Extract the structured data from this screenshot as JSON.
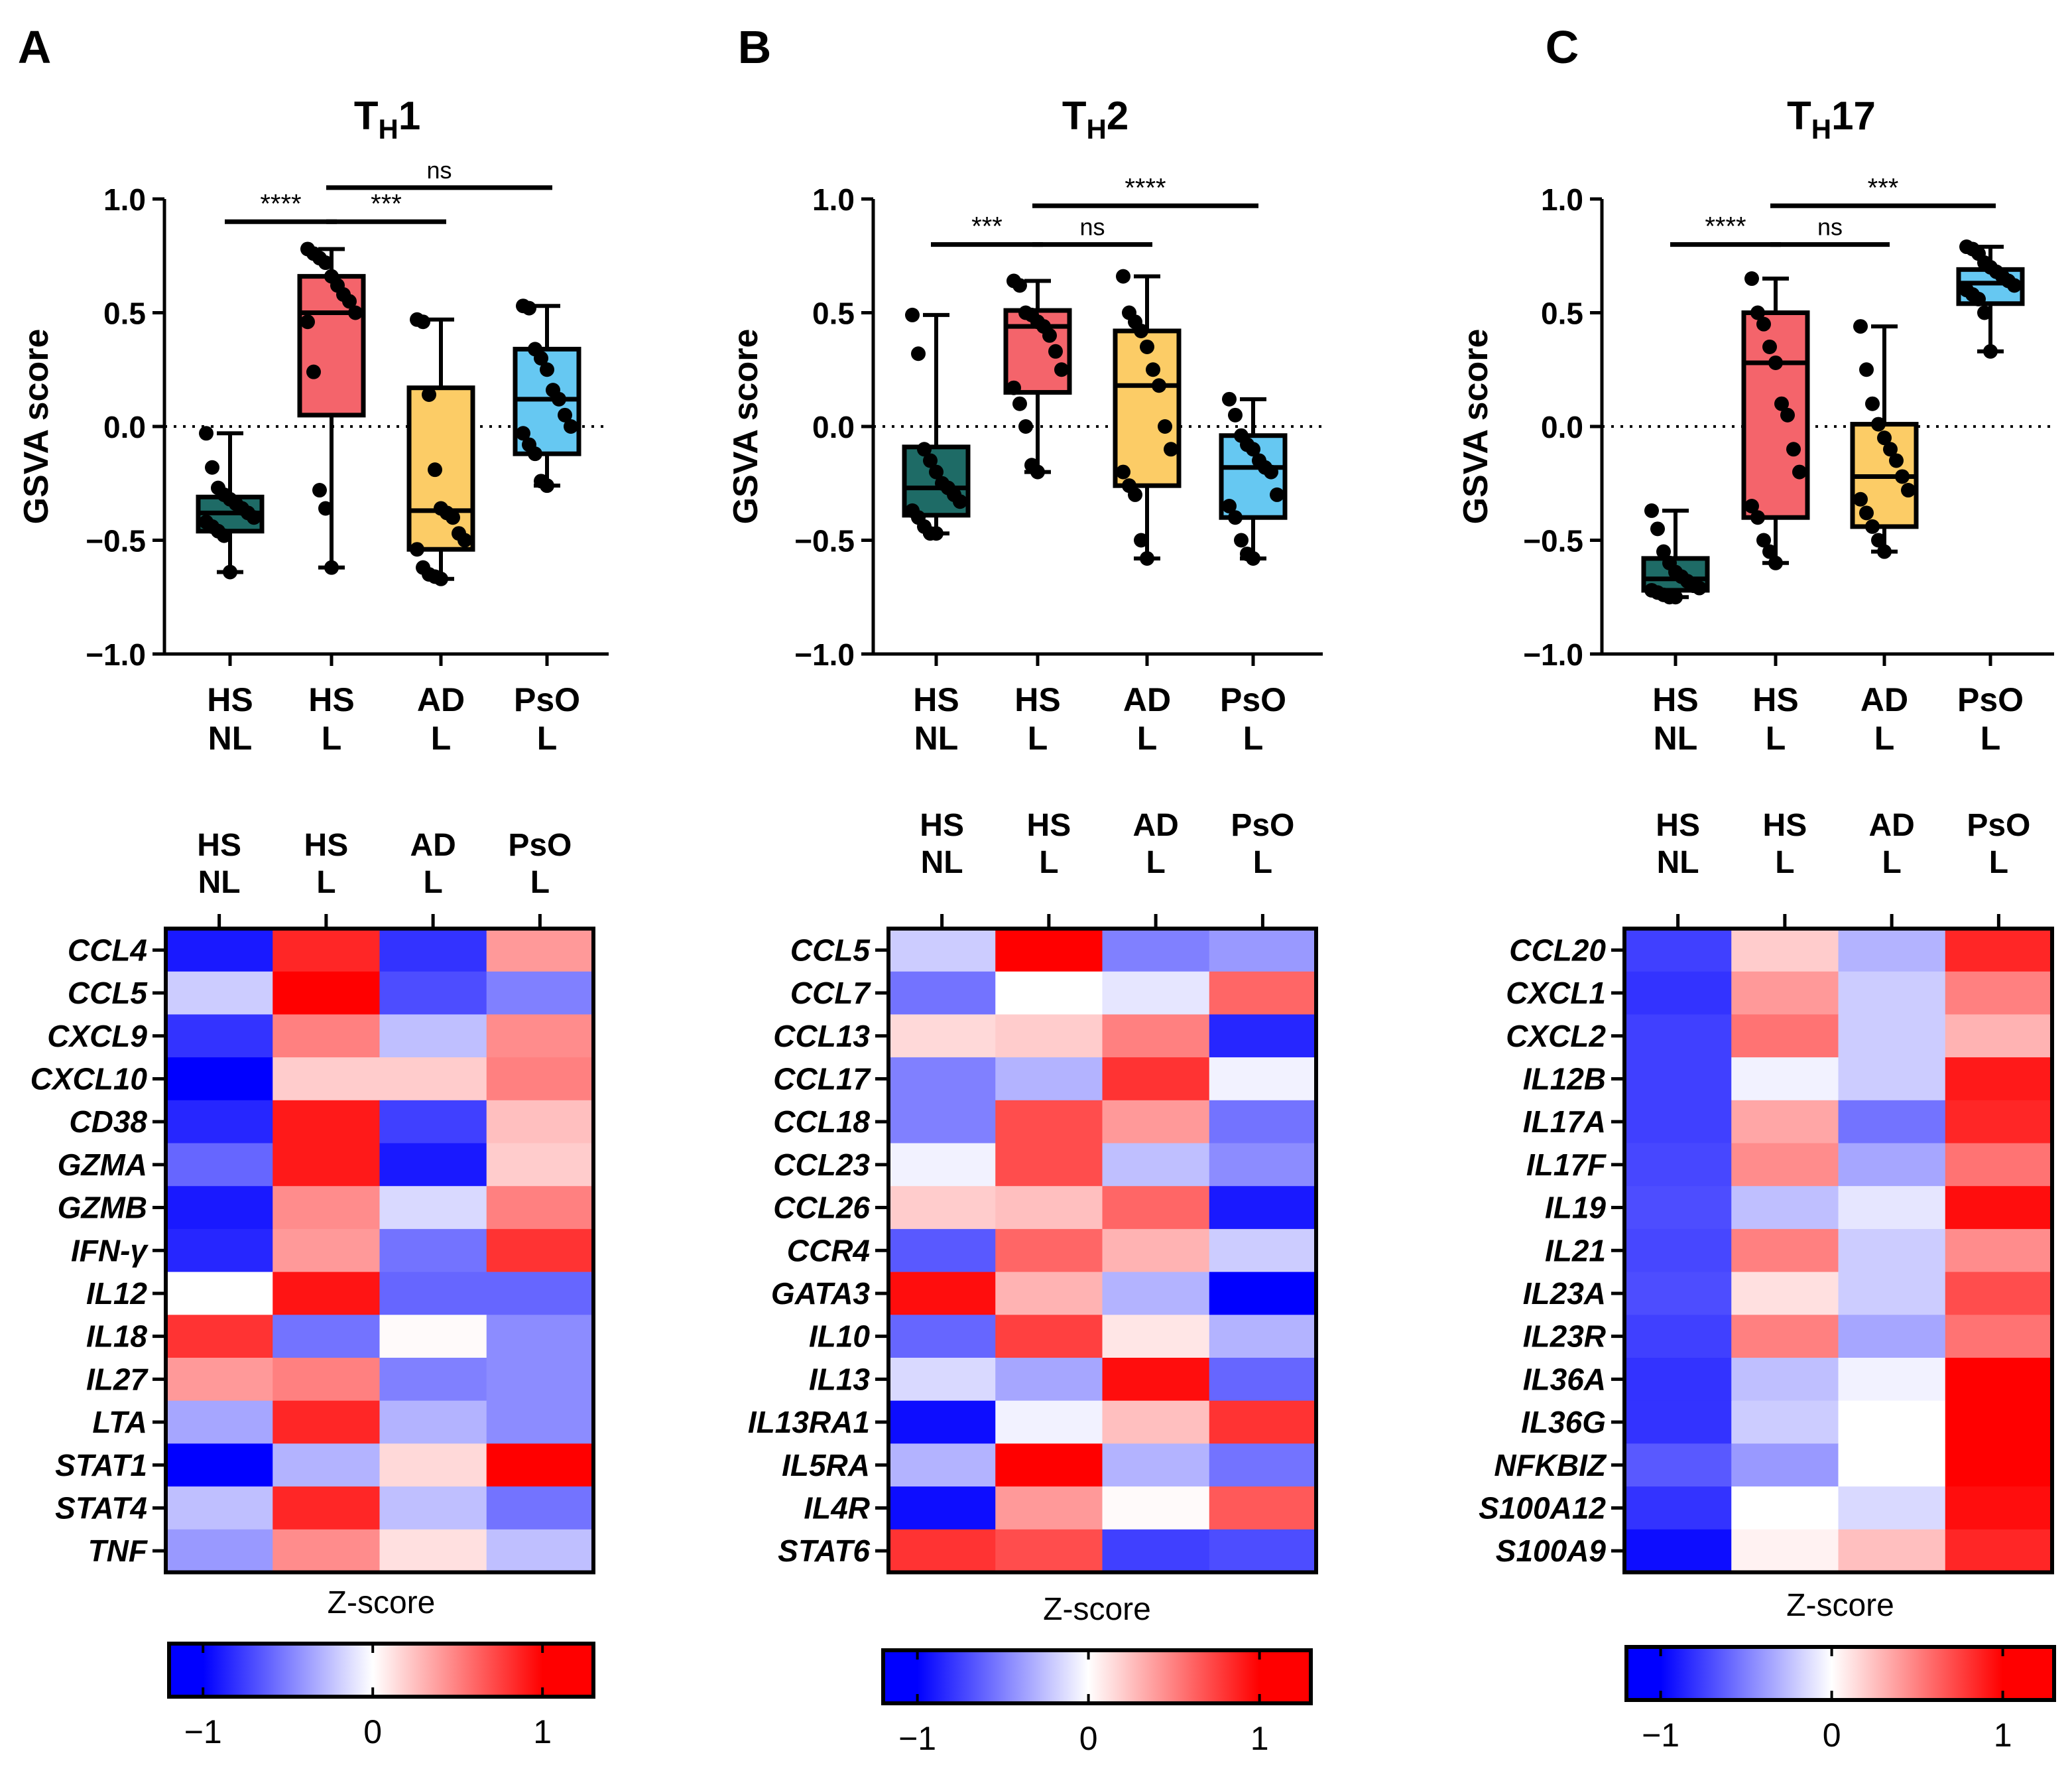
{
  "colors": {
    "HS_NL": "#1e6b66",
    "HS_L": "#f4646b",
    "AD_L": "#fccc66",
    "PsO_L": "#66c8f2",
    "scale_low": "#0000ff",
    "scale_mid": "#ffffff",
    "scale_high": "#ff0000"
  },
  "groups": [
    {
      "line1": "HS",
      "line2": "NL"
    },
    {
      "line1": "HS",
      "line2": "L"
    },
    {
      "line1": "AD",
      "line2": "L"
    },
    {
      "line1": "PsO",
      "line2": "L"
    }
  ],
  "panels": [
    {
      "letter": "A",
      "title_main": "T",
      "title_sub": "H",
      "title_rest": "1",
      "chart_data": {
        "type": "box",
        "ylabel": "GSVA score",
        "ylim": [
          -1.0,
          1.0
        ],
        "yticks": [
          "1.0",
          "0.5",
          "0.0",
          "−0.5",
          "−1.0"
        ],
        "reference_line": 0.0,
        "boxes": [
          {
            "group": "HS NL",
            "min": -0.64,
            "q1": -0.46,
            "median": -0.38,
            "q3": -0.31,
            "max": -0.03,
            "points": [
              -0.03,
              -0.18,
              -0.27,
              -0.3,
              -0.32,
              -0.34,
              -0.36,
              -0.38,
              -0.4,
              -0.42,
              -0.44,
              -0.46,
              -0.48,
              -0.64
            ]
          },
          {
            "group": "HS L",
            "min": -0.62,
            "q1": 0.05,
            "median": 0.5,
            "q3": 0.66,
            "max": 0.78,
            "points": [
              0.78,
              0.76,
              0.74,
              0.72,
              0.66,
              0.62,
              0.58,
              0.55,
              0.5,
              0.46,
              0.24,
              -0.28,
              -0.36,
              -0.62
            ]
          },
          {
            "group": "AD L",
            "min": -0.67,
            "q1": -0.54,
            "median": -0.37,
            "q3": 0.17,
            "max": 0.47,
            "points": [
              0.47,
              0.46,
              0.14,
              -0.19,
              -0.36,
              -0.38,
              -0.4,
              -0.47,
              -0.5,
              -0.54,
              -0.62,
              -0.65,
              -0.66,
              -0.67
            ]
          },
          {
            "group": "PsO L",
            "min": -0.26,
            "q1": -0.12,
            "median": 0.12,
            "q3": 0.34,
            "max": 0.53,
            "points": [
              0.53,
              0.52,
              0.34,
              0.3,
              0.25,
              0.16,
              0.12,
              0.05,
              0.0,
              -0.03,
              -0.08,
              -0.12,
              -0.24,
              -0.26
            ]
          }
        ],
        "brackets": [
          {
            "from": 0,
            "to": 1,
            "y": 0.9,
            "label": "****"
          },
          {
            "from": 1,
            "to": 2,
            "y": 0.9,
            "label": "***"
          },
          {
            "from": 1,
            "to": 3,
            "y": 1.05,
            "label": "ns"
          }
        ]
      },
      "heatmap": {
        "type": "heatmap",
        "genes": [
          "CCL4",
          "CCL5",
          "CXCL9",
          "CXCL10",
          "CD38",
          "GZMA",
          "GZMB",
          "IFN-γ",
          "IL12",
          "IL18",
          "IL27",
          "LTA",
          "STAT1",
          "STAT4",
          "TNF"
        ],
        "values": [
          [
            -0.9,
            0.85,
            -0.8,
            0.4
          ],
          [
            -0.2,
            1.0,
            -0.7,
            -0.5
          ],
          [
            -0.8,
            0.5,
            -0.25,
            0.45
          ],
          [
            -1.0,
            0.2,
            0.2,
            0.5
          ],
          [
            -0.85,
            0.9,
            -0.75,
            0.25
          ],
          [
            -0.6,
            0.9,
            -0.9,
            0.2
          ],
          [
            -0.9,
            0.45,
            -0.15,
            0.5
          ],
          [
            -0.85,
            0.4,
            -0.55,
            0.8
          ],
          [
            0.0,
            0.92,
            -0.6,
            -0.6
          ],
          [
            0.8,
            -0.55,
            0.02,
            -0.45
          ],
          [
            0.4,
            0.5,
            -0.5,
            -0.45
          ],
          [
            -0.35,
            0.85,
            -0.3,
            -0.45
          ],
          [
            -1.0,
            -0.3,
            0.15,
            1.0
          ],
          [
            -0.25,
            0.85,
            -0.25,
            -0.55
          ],
          [
            -0.4,
            0.45,
            0.12,
            -0.25
          ]
        ],
        "colorbar_label": "Z-score",
        "colorbar_ticks": [
          "−1",
          "0",
          "1"
        ]
      }
    },
    {
      "letter": "B",
      "title_main": "T",
      "title_sub": "H",
      "title_rest": "2",
      "chart_data": {
        "type": "box",
        "ylabel": "GSVA score",
        "ylim": [
          -1.0,
          1.0
        ],
        "yticks": [
          "1.0",
          "0.5",
          "0.0",
          "−0.5",
          "−1.0"
        ],
        "reference_line": 0.0,
        "boxes": [
          {
            "group": "HS NL",
            "min": -0.47,
            "q1": -0.39,
            "median": -0.27,
            "q3": -0.09,
            "max": 0.49,
            "points": [
              0.49,
              0.32,
              -0.1,
              -0.15,
              -0.2,
              -0.25,
              -0.27,
              -0.3,
              -0.33,
              -0.37,
              -0.4,
              -0.44,
              -0.47,
              -0.47
            ]
          },
          {
            "group": "HS L",
            "min": -0.2,
            "q1": 0.15,
            "median": 0.44,
            "q3": 0.51,
            "max": 0.64,
            "points": [
              0.64,
              0.62,
              0.5,
              0.49,
              0.46,
              0.44,
              0.4,
              0.33,
              0.25,
              0.17,
              0.1,
              0.0,
              -0.17,
              -0.2
            ]
          },
          {
            "group": "AD L",
            "min": -0.58,
            "q1": -0.26,
            "median": 0.18,
            "q3": 0.42,
            "max": 0.66,
            "points": [
              0.66,
              0.5,
              0.46,
              0.42,
              0.35,
              0.25,
              0.18,
              0.0,
              -0.1,
              -0.2,
              -0.26,
              -0.3,
              -0.5,
              -0.58
            ]
          },
          {
            "group": "PsO L",
            "min": -0.58,
            "q1": -0.4,
            "median": -0.18,
            "q3": -0.04,
            "max": 0.12,
            "points": [
              0.12,
              0.05,
              -0.04,
              -0.08,
              -0.1,
              -0.15,
              -0.18,
              -0.2,
              -0.3,
              -0.35,
              -0.4,
              -0.5,
              -0.56,
              -0.58
            ]
          }
        ],
        "brackets": [
          {
            "from": 0,
            "to": 1,
            "y": 0.8,
            "label": "***"
          },
          {
            "from": 1,
            "to": 2,
            "y": 0.8,
            "label": "ns"
          },
          {
            "from": 1,
            "to": 3,
            "y": 0.97,
            "label": "****"
          }
        ]
      },
      "heatmap": {
        "type": "heatmap",
        "genes": [
          "CCL5",
          "CCL7",
          "CCL13",
          "CCL17",
          "CCL18",
          "CCL23",
          "CCL26",
          "CCR4",
          "GATA3",
          "IL10",
          "IL13",
          "IL13RA1",
          "IL5RA",
          "IL4R",
          "STAT6"
        ],
        "values": [
          [
            -0.2,
            1.0,
            -0.5,
            -0.4
          ],
          [
            -0.55,
            0.0,
            -0.1,
            0.6
          ],
          [
            0.15,
            0.2,
            0.5,
            -0.85
          ],
          [
            -0.5,
            -0.3,
            0.8,
            -0.05
          ],
          [
            -0.5,
            0.7,
            0.4,
            -0.55
          ],
          [
            -0.05,
            0.7,
            -0.25,
            -0.45
          ],
          [
            0.2,
            0.25,
            0.6,
            -0.9
          ],
          [
            -0.65,
            0.6,
            0.3,
            -0.2
          ],
          [
            0.95,
            0.3,
            -0.3,
            -1.0
          ],
          [
            -0.6,
            0.75,
            0.1,
            -0.3
          ],
          [
            -0.15,
            -0.35,
            0.95,
            -0.6
          ],
          [
            -0.95,
            -0.05,
            0.25,
            0.8
          ],
          [
            -0.3,
            1.0,
            -0.3,
            -0.55
          ],
          [
            -0.95,
            0.4,
            0.02,
            0.65
          ],
          [
            0.8,
            0.7,
            -0.75,
            -0.7
          ]
        ],
        "colorbar_label": "Z-score",
        "colorbar_ticks": [
          "−1",
          "0",
          "1"
        ]
      }
    },
    {
      "letter": "C",
      "title_main": "T",
      "title_sub": "H",
      "title_rest": "17",
      "chart_data": {
        "type": "box",
        "ylabel": "GSVA score",
        "ylim": [
          -1.0,
          1.0
        ],
        "yticks": [
          "1.0",
          "0.5",
          "0.0",
          "−0.5",
          "−1.0"
        ],
        "reference_line": 0.0,
        "boxes": [
          {
            "group": "HS NL",
            "min": -0.75,
            "q1": -0.72,
            "median": -0.67,
            "q3": -0.58,
            "max": -0.37,
            "points": [
              -0.37,
              -0.45,
              -0.55,
              -0.6,
              -0.64,
              -0.66,
              -0.68,
              -0.7,
              -0.71,
              -0.72,
              -0.73,
              -0.74,
              -0.75,
              -0.75
            ]
          },
          {
            "group": "HS L",
            "min": -0.6,
            "q1": -0.4,
            "median": 0.28,
            "q3": 0.5,
            "max": 0.65,
            "points": [
              0.65,
              0.5,
              0.45,
              0.35,
              0.28,
              0.1,
              0.05,
              -0.1,
              -0.2,
              -0.35,
              -0.4,
              -0.5,
              -0.55,
              -0.6
            ]
          },
          {
            "group": "AD L",
            "min": -0.55,
            "q1": -0.44,
            "median": -0.22,
            "q3": 0.01,
            "max": 0.44,
            "points": [
              0.44,
              0.25,
              0.1,
              0.01,
              -0.05,
              -0.1,
              -0.15,
              -0.22,
              -0.28,
              -0.32,
              -0.38,
              -0.44,
              -0.5,
              -0.55
            ]
          },
          {
            "group": "PsO L",
            "min": 0.33,
            "q1": 0.54,
            "median": 0.63,
            "q3": 0.69,
            "max": 0.79,
            "points": [
              0.79,
              0.78,
              0.76,
              0.72,
              0.7,
              0.68,
              0.66,
              0.64,
              0.62,
              0.6,
              0.58,
              0.56,
              0.5,
              0.33
            ]
          }
        ],
        "brackets": [
          {
            "from": 0,
            "to": 1,
            "y": 0.8,
            "label": "****"
          },
          {
            "from": 1,
            "to": 2,
            "y": 0.8,
            "label": "ns"
          },
          {
            "from": 1,
            "to": 3,
            "y": 0.97,
            "label": "***"
          }
        ]
      },
      "heatmap": {
        "type": "heatmap",
        "genes": [
          "CCL20",
          "CXCL1",
          "CXCL2",
          "IL12B",
          "IL17A",
          "IL17F",
          "IL19",
          "IL21",
          "IL23A",
          "IL23R",
          "IL36A",
          "IL36G",
          "NFKBIZ",
          "S100A12",
          "S100A9"
        ],
        "values": [
          [
            -0.75,
            0.2,
            -0.3,
            0.85
          ],
          [
            -0.8,
            0.4,
            -0.2,
            0.5
          ],
          [
            -0.75,
            0.55,
            -0.2,
            0.3
          ],
          [
            -0.75,
            -0.05,
            -0.2,
            0.9
          ],
          [
            -0.75,
            0.35,
            -0.55,
            0.85
          ],
          [
            -0.72,
            0.45,
            -0.35,
            0.55
          ],
          [
            -0.7,
            -0.25,
            -0.1,
            0.95
          ],
          [
            -0.72,
            0.5,
            -0.2,
            0.45
          ],
          [
            -0.7,
            0.12,
            -0.2,
            0.7
          ],
          [
            -0.75,
            0.5,
            -0.35,
            0.55
          ],
          [
            -0.8,
            -0.25,
            -0.05,
            1.0
          ],
          [
            -0.8,
            -0.2,
            0.0,
            1.0
          ],
          [
            -0.65,
            -0.4,
            0.0,
            1.0
          ],
          [
            -0.8,
            0.0,
            -0.15,
            0.95
          ],
          [
            -0.95,
            0.05,
            0.25,
            0.85
          ]
        ],
        "colorbar_label": "Z-score",
        "colorbar_ticks": [
          "−1",
          "0",
          "1"
        ]
      }
    }
  ]
}
